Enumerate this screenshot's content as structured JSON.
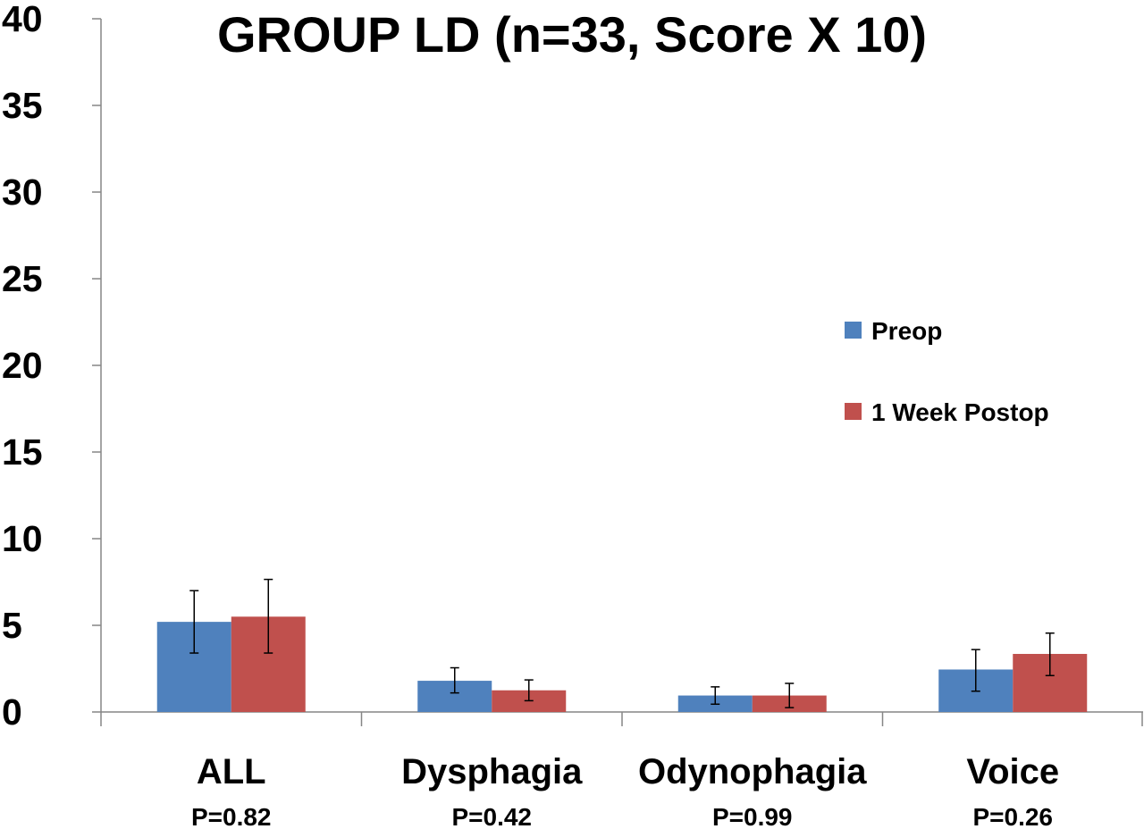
{
  "chart_data": {
    "type": "bar",
    "title": "GROUP LD (n=33, Score X 10)",
    "xlabel": "",
    "ylabel": "",
    "ylim": [
      0,
      40
    ],
    "yticks": [
      0,
      5,
      10,
      15,
      20,
      25,
      30,
      35,
      40
    ],
    "ytick_labels": [
      "0",
      "5",
      "10",
      "15",
      "20",
      "25",
      "30",
      "35",
      "40"
    ],
    "grid": false,
    "legend_position": "right",
    "categories": [
      "ALL",
      "Dysphagia",
      "Odynophagia",
      "Voice"
    ],
    "p_values": [
      "P=0.82",
      "P=0.42",
      "P=0.99",
      "P=0.26"
    ],
    "series": [
      {
        "name": "Preop",
        "color": "#4F81BD",
        "values": [
          5.2,
          1.8,
          0.95,
          2.45
        ],
        "error_low": [
          3.4,
          1.1,
          0.45,
          1.2
        ],
        "error_high": [
          7.0,
          2.55,
          1.45,
          3.6
        ]
      },
      {
        "name": "1 Week Postop",
        "color": "#C0504D",
        "values": [
          5.5,
          1.25,
          0.95,
          3.35
        ],
        "error_low": [
          3.4,
          0.65,
          0.25,
          2.1
        ],
        "error_high": [
          7.65,
          1.85,
          1.65,
          4.55
        ]
      }
    ]
  }
}
